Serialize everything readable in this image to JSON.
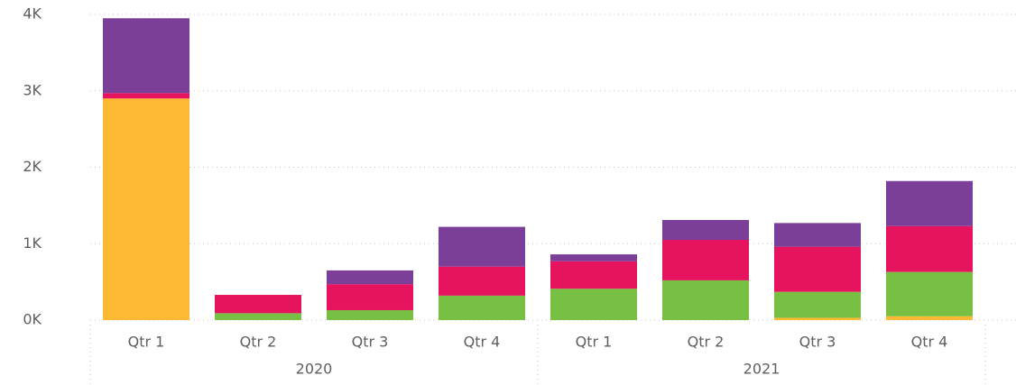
{
  "chart_data": {
    "type": "stacked_bar",
    "categories": [
      "Qtr 1",
      "Qtr 2",
      "Qtr 3",
      "Qtr 4",
      "Qtr 1",
      "Qtr 2",
      "Qtr 3",
      "Qtr 4"
    ],
    "groups": [
      "2020",
      "2021"
    ],
    "series": [
      {
        "color": "#FDB933",
        "values": [
          2900,
          0,
          0,
          0,
          0,
          0,
          30,
          50
        ]
      },
      {
        "color": "#77C043",
        "values": [
          0,
          90,
          130,
          320,
          410,
          520,
          340,
          580
        ]
      },
      {
        "color": "#E6135E",
        "values": [
          70,
          240,
          340,
          380,
          360,
          530,
          590,
          600
        ]
      },
      {
        "color": "#7B3F9A",
        "values": [
          980,
          0,
          180,
          520,
          90,
          260,
          310,
          590
        ]
      }
    ],
    "ylim": [
      0,
      4000
    ],
    "yticks": [
      {
        "value": 0,
        "label": "0K"
      },
      {
        "value": 1000,
        "label": "1K"
      },
      {
        "value": 2000,
        "label": "2K"
      },
      {
        "value": 3000,
        "label": "3K"
      },
      {
        "value": 4000,
        "label": "4K"
      }
    ],
    "grid": true
  }
}
